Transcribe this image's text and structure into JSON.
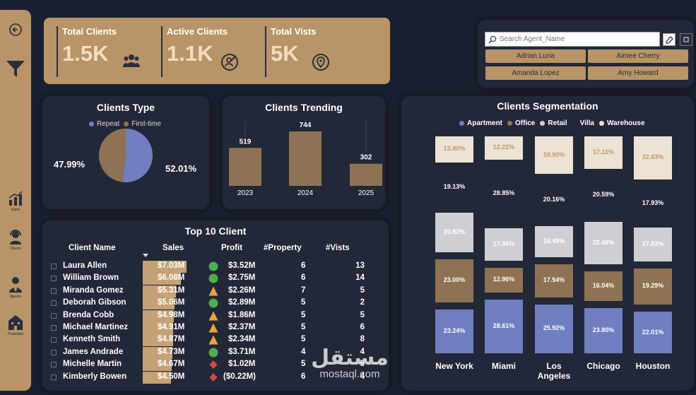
{
  "kpis": [
    {
      "title": "Total Clients",
      "value": "1.5K",
      "icon": "people-icon"
    },
    {
      "title": "Active Clients",
      "value": "1.1K",
      "icon": "target-user-icon"
    },
    {
      "title": "Total Vists",
      "value": "5K",
      "icon": "location-pin-icon"
    }
  ],
  "sidebar": {
    "items": [
      {
        "label": "Sales",
        "icon": "bar-chart-icon"
      },
      {
        "label": "Clients",
        "icon": "headset-icon"
      },
      {
        "label": "Agents",
        "icon": "agent-icon"
      },
      {
        "label": "Properties",
        "icon": "building-icon"
      }
    ]
  },
  "filter": {
    "search_placeholder": "Search Agent_Name",
    "agents": [
      "Adrian Luna",
      "Aimee Cherry",
      "Amanda Lopez",
      "Amy Howard"
    ]
  },
  "clients_type": {
    "title": "Clients Type",
    "legend": [
      "Repeat",
      "First-time"
    ],
    "colors": [
      "#6f7fbf",
      "#8f7253"
    ]
  },
  "clients_trending": {
    "title": "Clients Trending"
  },
  "segmentation": {
    "title": "Clients Segmentation",
    "legend": [
      "Apartment",
      "Office",
      "Retail",
      "Villa",
      "Warehouse"
    ],
    "colors": {
      "Apartment": "#6f7fbf",
      "Office": "#8f7253",
      "Retail": "#cfcfd3",
      "Villa": "#222838",
      "Warehouse": "#ece3d4"
    }
  },
  "top10": {
    "title": "Top 10 Client",
    "columns": [
      "Client Name",
      "Sales",
      "Profit",
      "#Property",
      "#Vists"
    ],
    "rows": [
      {
        "name": "Laura Allen",
        "sales": "$7.03M",
        "sales_val": 7.03,
        "profit": "$3.52M",
        "status": "circle",
        "property": "6",
        "vists": "13"
      },
      {
        "name": "William Brown",
        "sales": "$6.08M",
        "sales_val": 6.08,
        "profit": "$2.75M",
        "status": "circle",
        "property": "6",
        "vists": "14"
      },
      {
        "name": "Miranda Gomez",
        "sales": "$5.31M",
        "sales_val": 5.31,
        "profit": "$2.26M",
        "status": "triangle",
        "property": "7",
        "vists": "5"
      },
      {
        "name": "Deborah Gibson",
        "sales": "$5.06M",
        "sales_val": 5.06,
        "profit": "$2.89M",
        "status": "circle",
        "property": "5",
        "vists": "2"
      },
      {
        "name": "Brenda Cobb",
        "sales": "$4.98M",
        "sales_val": 4.98,
        "profit": "$1.86M",
        "status": "triangle",
        "property": "5",
        "vists": "5"
      },
      {
        "name": "Michael Martinez",
        "sales": "$4.91M",
        "sales_val": 4.91,
        "profit": "$2.37M",
        "status": "triangle",
        "property": "5",
        "vists": "6"
      },
      {
        "name": "Kenneth Smith",
        "sales": "$4.87M",
        "sales_val": 4.87,
        "profit": "$2.34M",
        "status": "triangle",
        "property": "5",
        "vists": "8"
      },
      {
        "name": "James Andrade",
        "sales": "$4.73M",
        "sales_val": 4.73,
        "profit": "$3.71M",
        "status": "circle",
        "property": "4",
        "vists": "4"
      },
      {
        "name": "Michelle Martin",
        "sales": "$4.67M",
        "sales_val": 4.67,
        "profit": "$1.02M",
        "status": "diamond",
        "property": "5",
        "vists": "5"
      },
      {
        "name": "Kimberly Bowen",
        "sales": "$4.50M",
        "sales_val": 4.5,
        "profit": "($0.22M)",
        "status": "diamond",
        "property": "6",
        "vists": "4"
      }
    ]
  },
  "watermark": {
    "arabic": "مستقل",
    "latin": "mostaql.com"
  },
  "chart_data": [
    {
      "type": "pie",
      "title": "Clients Type",
      "categories": [
        "Repeat",
        "First-time"
      ],
      "values": [
        52.01,
        47.99
      ],
      "labels": [
        "52.01%",
        "47.99%"
      ]
    },
    {
      "type": "bar",
      "title": "Clients Trending",
      "categories": [
        "2023",
        "2024",
        "2025"
      ],
      "values": [
        519,
        744,
        302
      ]
    },
    {
      "type": "bar",
      "stacked": true,
      "percent": true,
      "title": "Clients Segmentation",
      "categories": [
        "New York",
        "Miami",
        "Los Angeles",
        "Chicago",
        "Houston"
      ],
      "series": [
        {
          "name": "Apartment",
          "values": [
            23.24,
            28.61,
            25.92,
            23.8,
            22.01
          ]
        },
        {
          "name": "Office",
          "values": [
            23.0,
            12.96,
            17.54,
            16.04,
            19.29
          ]
        },
        {
          "name": "Retail",
          "values": [
            20.82,
            17.36,
            16.49,
            22.46,
            17.93
          ]
        },
        {
          "name": "Villa",
          "values": [
            19.13,
            28.85,
            20.16,
            20.59,
            17.93
          ]
        },
        {
          "name": "Warehouse",
          "values": [
            13.8,
            12.22,
            19.9,
            17.11,
            22.83
          ]
        }
      ],
      "legend_position": "top"
    }
  ]
}
